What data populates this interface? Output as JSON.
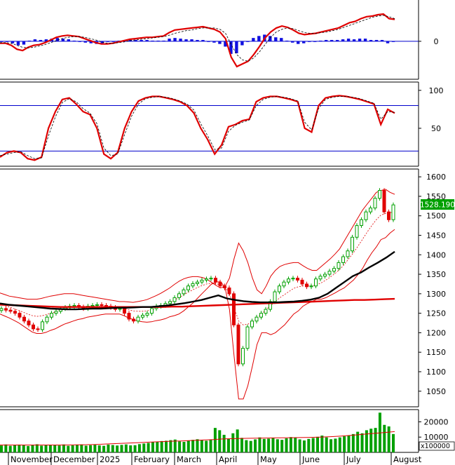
{
  "chart_data": [
    {
      "type": "macd",
      "panel": "macd",
      "yticks": [
        {
          "label": "0",
          "value": 0
        }
      ],
      "ylim": [
        -55,
        60
      ],
      "series": [
        {
          "color": "#e00000",
          "values": [
            -3,
            -3,
            -6,
            -12,
            -14,
            -9,
            -6,
            -5,
            -2,
            2,
            6,
            8,
            9,
            8,
            7,
            4,
            1,
            -2,
            -4,
            -4,
            -3,
            -1,
            1,
            3,
            4,
            5,
            6,
            6,
            7,
            8,
            13,
            17,
            18,
            19,
            20,
            21,
            22,
            20,
            18,
            14,
            4,
            -24,
            -38,
            -34,
            -30,
            -20,
            -8,
            5,
            14,
            20,
            23,
            21,
            17,
            12,
            10,
            11,
            12,
            14,
            16,
            18,
            20,
            24,
            28,
            30,
            34,
            37,
            38,
            40,
            41,
            34,
            33
          ]
        },
        {
          "color": "#000000",
          "dashed": true,
          "values": [
            -2,
            -2,
            -3,
            -6,
            -9,
            -10,
            -9,
            -7,
            -5,
            -2,
            1,
            4,
            6,
            7,
            7,
            6,
            4,
            2,
            -1,
            -3,
            -3,
            -2,
            -1,
            1,
            2,
            3,
            4,
            5,
            6,
            7,
            9,
            12,
            14,
            16,
            17,
            19,
            20,
            20,
            20,
            18,
            12,
            -5,
            -20,
            -28,
            -30,
            -25,
            -16,
            -5,
            6,
            14,
            18,
            20,
            19,
            16,
            13,
            12,
            12,
            13,
            14,
            16,
            18,
            21,
            24,
            27,
            30,
            33,
            36,
            38,
            39,
            37,
            34
          ]
        }
      ],
      "histogram": [
        -1,
        -1,
        -3,
        -6,
        -5,
        1,
        3,
        2,
        3,
        4,
        5,
        4,
        3,
        1,
        0,
        -2,
        -3,
        -4,
        -3,
        -1,
        0,
        1,
        2,
        2,
        2,
        2,
        2,
        1,
        1,
        1,
        4,
        5,
        4,
        3,
        3,
        2,
        2,
        0,
        -2,
        -4,
        -8,
        -19,
        -18,
        -6,
        0,
        5,
        8,
        10,
        8,
        6,
        5,
        1,
        -2,
        -4,
        -3,
        -1,
        0,
        1,
        2,
        2,
        2,
        3,
        4,
        3,
        4,
        4,
        2,
        2,
        2,
        -3,
        -1
      ]
    },
    {
      "type": "stochastic",
      "panel": "stochastic",
      "yticks": [
        {
          "label": "100",
          "value": 100
        },
        {
          "label": "50",
          "value": 50
        }
      ],
      "ylim": [
        0,
        110
      ],
      "hlines": [
        {
          "value": 80,
          "color": "#0000cc"
        },
        {
          "value": 20,
          "color": "#0000cc"
        }
      ],
      "series": [
        {
          "color": "#e00000",
          "values": [
            12,
            18,
            20,
            18,
            10,
            8,
            12,
            50,
            72,
            88,
            90,
            82,
            72,
            68,
            50,
            16,
            10,
            18,
            50,
            72,
            86,
            90,
            92,
            92,
            90,
            88,
            85,
            80,
            70,
            50,
            35,
            16,
            28,
            52,
            55,
            60,
            62,
            85,
            90,
            92,
            92,
            90,
            88,
            85,
            50,
            45,
            80,
            90,
            92,
            93,
            92,
            90,
            88,
            85,
            82,
            55,
            75,
            70
          ]
        },
        {
          "color": "#000000",
          "dashed": true,
          "values": [
            14,
            16,
            18,
            19,
            14,
            10,
            11,
            40,
            65,
            84,
            89,
            85,
            76,
            70,
            56,
            24,
            14,
            16,
            42,
            66,
            82,
            89,
            91,
            92,
            91,
            89,
            86,
            82,
            74,
            56,
            40,
            22,
            24,
            46,
            54,
            58,
            61,
            80,
            88,
            91,
            92,
            91,
            89,
            86,
            58,
            48,
            76,
            88,
            91,
            92,
            92,
            91,
            89,
            86,
            83,
            62,
            72,
            71
          ]
        }
      ]
    },
    {
      "type": "candlestick",
      "panel": "price",
      "ylim": [
        1010,
        1620
      ],
      "yticks": [
        {
          "label": "1600",
          "value": 1600
        },
        {
          "label": "1550",
          "value": 1550
        },
        {
          "label": "1500",
          "value": 1500
        },
        {
          "label": "1450",
          "value": 1450
        },
        {
          "label": "1400",
          "value": 1400
        },
        {
          "label": "1350",
          "value": 1350
        },
        {
          "label": "1300",
          "value": 1300
        },
        {
          "label": "1250",
          "value": 1250
        },
        {
          "label": "1200",
          "value": 1200
        },
        {
          "label": "1150",
          "value": 1150
        },
        {
          "label": "1100",
          "value": 1100
        },
        {
          "label": "1050",
          "value": 1050
        }
      ],
      "last_price_label": "1528.190",
      "last_price": 1528.19,
      "closes": [
        1262,
        1258,
        1255,
        1250,
        1240,
        1230,
        1220,
        1210,
        1208,
        1228,
        1240,
        1250,
        1255,
        1262,
        1265,
        1268,
        1270,
        1266,
        1262,
        1268,
        1270,
        1272,
        1270,
        1268,
        1265,
        1260,
        1262,
        1250,
        1235,
        1230,
        1240,
        1245,
        1250,
        1262,
        1268,
        1270,
        1275,
        1280,
        1290,
        1300,
        1310,
        1320,
        1326,
        1330,
        1335,
        1338,
        1340,
        1330,
        1320,
        1315,
        1300,
        1220,
        1120,
        1160,
        1215,
        1230,
        1240,
        1250,
        1260,
        1280,
        1305,
        1320,
        1330,
        1338,
        1340,
        1335,
        1325,
        1318,
        1320,
        1338,
        1345,
        1350,
        1358,
        1365,
        1380,
        1395,
        1410,
        1445,
        1475,
        1490,
        1510,
        1520,
        1545,
        1565,
        1510,
        1490,
        1528
      ],
      "upper_band": [
        1302,
        1298,
        1294,
        1292,
        1290,
        1288,
        1286,
        1286,
        1286,
        1288,
        1291,
        1294,
        1296,
        1298,
        1300,
        1300,
        1300,
        1298,
        1296,
        1294,
        1292,
        1290,
        1288,
        1286,
        1284,
        1282,
        1280,
        1280,
        1279,
        1278,
        1280,
        1282,
        1285,
        1290,
        1295,
        1301,
        1308,
        1315,
        1324,
        1332,
        1338,
        1342,
        1344,
        1344,
        1342,
        1338,
        1330,
        1322,
        1315,
        1318,
        1340,
        1390,
        1430,
        1410,
        1380,
        1340,
        1310,
        1300,
        1320,
        1345,
        1360,
        1370,
        1375,
        1378,
        1380,
        1380,
        1372,
        1365,
        1360,
        1360,
        1370,
        1380,
        1390,
        1402,
        1415,
        1435,
        1455,
        1475,
        1495,
        1515,
        1530,
        1545,
        1560,
        1565,
        1568,
        1560,
        1555
      ],
      "middle_band": [
        1275,
        1270,
        1266,
        1262,
        1258,
        1253,
        1248,
        1244,
        1242,
        1243,
        1246,
        1250,
        1253,
        1257,
        1261,
        1263,
        1265,
        1266,
        1266,
        1267,
        1267,
        1267,
        1267,
        1267,
        1266,
        1265,
        1264,
        1262,
        1259,
        1256,
        1255,
        1255,
        1256,
        1259,
        1263,
        1267,
        1272,
        1278,
        1284,
        1290,
        1297,
        1304,
        1310,
        1316,
        1321,
        1325,
        1327,
        1326,
        1323,
        1318,
        1300,
        1265,
        1230,
        1220,
        1222,
        1228,
        1238,
        1248,
        1260,
        1270,
        1280,
        1290,
        1298,
        1306,
        1314,
        1318,
        1320,
        1320,
        1320,
        1323,
        1328,
        1335,
        1343,
        1352,
        1362,
        1375,
        1390,
        1405,
        1422,
        1440,
        1458,
        1475,
        1490,
        1502,
        1506,
        1508,
        1510
      ],
      "lower_band": [
        1248,
        1243,
        1238,
        1232,
        1226,
        1218,
        1210,
        1202,
        1198,
        1198,
        1201,
        1206,
        1210,
        1216,
        1222,
        1226,
        1230,
        1234,
        1236,
        1240,
        1242,
        1244,
        1246,
        1248,
        1248,
        1248,
        1248,
        1244,
        1238,
        1234,
        1230,
        1228,
        1227,
        1228,
        1231,
        1233,
        1236,
        1241,
        1244,
        1248,
        1256,
        1266,
        1276,
        1288,
        1300,
        1312,
        1324,
        1330,
        1331,
        1318,
        1260,
        1140,
        1030,
        1030,
        1064,
        1115,
        1170,
        1200,
        1200,
        1195,
        1200,
        1210,
        1220,
        1234,
        1248,
        1256,
        1268,
        1275,
        1280,
        1286,
        1286,
        1290,
        1296,
        1302,
        1309,
        1315,
        1325,
        1335,
        1349,
        1365,
        1386,
        1405,
        1420,
        1439,
        1444,
        1456,
        1465
      ],
      "ma_long": [
        1272,
        1271,
        1270,
        1269,
        1268,
        1267,
        1266,
        1266,
        1266,
        1266,
        1266,
        1266,
        1266,
        1266,
        1266,
        1266,
        1266,
        1267,
        1267,
        1268,
        1269,
        1270,
        1271,
        1272,
        1273,
        1274,
        1275,
        1276,
        1277,
        1278,
        1279,
        1280,
        1281,
        1282,
        1283,
        1284,
        1284,
        1285,
        1286,
        1287
      ],
      "ma_mid": [
        1275,
        1272,
        1270,
        1268,
        1266,
        1264,
        1262,
        1261,
        1260,
        1260,
        1261,
        1262,
        1262,
        1263,
        1264,
        1264,
        1265,
        1266,
        1266,
        1268,
        1270,
        1273,
        1276,
        1280,
        1284,
        1290,
        1296,
        1288,
        1284,
        1281,
        1279,
        1278,
        1278,
        1278,
        1279,
        1280,
        1282,
        1285,
        1290,
        1300,
        1315,
        1330,
        1345,
        1355,
        1368,
        1380,
        1393,
        1408
      ]
    },
    {
      "type": "bar",
      "panel": "volume",
      "ylim": [
        0,
        28000
      ],
      "yticks": [
        {
          "label": "20000",
          "value": 20000
        },
        {
          "label": "10000",
          "value": 10000
        }
      ],
      "unit_label": "x100000",
      "values": [
        4500,
        5200,
        4300,
        4800,
        5100,
        4600,
        4200,
        4900,
        5300,
        4400,
        4700,
        5000,
        4800,
        4500,
        5200,
        4300,
        4600,
        4900,
        5200,
        4400,
        4700,
        5000,
        4600,
        4300,
        5100,
        4800,
        4500,
        4900,
        5200,
        4600,
        4700,
        5400,
        5800,
        6200,
        6800,
        7000,
        7400,
        7600,
        8000,
        8400,
        7200,
        6900,
        7800,
        8200,
        8600,
        8000,
        7600,
        8400,
        16000,
        14500,
        11500,
        9000,
        12500,
        15000,
        9500,
        8000,
        7500,
        8500,
        9800,
        8800,
        9000,
        9500,
        8600,
        8200,
        9200,
        10000,
        9600,
        8500,
        7800,
        8800,
        9400,
        10200,
        11000,
        9800,
        8600,
        9000,
        9800,
        10500,
        11200,
        12000,
        13500,
        12500,
        14500,
        15500,
        16000,
        26000,
        18000,
        17000,
        12000
      ],
      "ma": [
        4800,
        4800,
        4800,
        4800,
        4800,
        4800,
        4800,
        4900,
        5000,
        5200,
        5500,
        5800,
        6100,
        6400,
        6700,
        7000,
        7300,
        7500,
        7800,
        8100,
        8400,
        8800,
        9000,
        9200,
        9300,
        9400,
        9500,
        9600,
        9700,
        9800,
        10000,
        10300,
        10700,
        11200,
        11800,
        12400,
        13000,
        13600
      ]
    },
    {
      "type": "axis",
      "panel": "time",
      "x_labels": [
        "November",
        "December",
        "2025",
        "February",
        "March",
        "April",
        "May",
        "June",
        "July",
        "August"
      ]
    }
  ]
}
